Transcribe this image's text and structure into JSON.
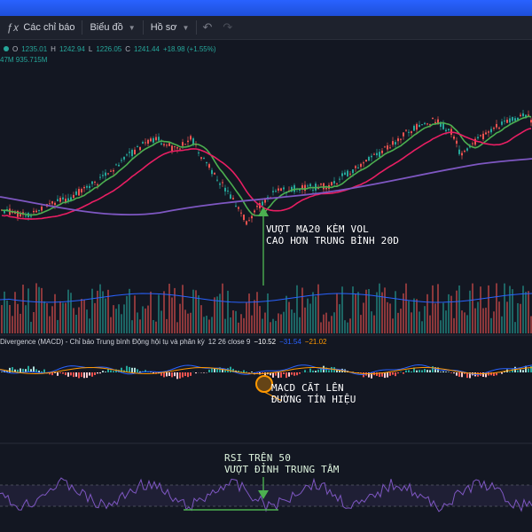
{
  "toolbar": {
    "indicators_label": "Các chỉ báo",
    "chart_label": "Biểu đồ",
    "profile_label": "Hồ sơ",
    "undo_icon": "undo-icon",
    "redo_icon": "redo-icon"
  },
  "ohlc": {
    "o_label": "O",
    "o_value": "1235.01",
    "h_label": "H",
    "h_value": "1242.94",
    "l_label": "L",
    "l_value": "1226.05",
    "c_label": "C",
    "c_value": "1241.44",
    "change": "+18.98 (+1.55%)"
  },
  "volume": {
    "label": "47M",
    "value": "935.715M"
  },
  "macd": {
    "title": "Divergence (MACD) - Chỉ báo Trung bình Động hội tụ và phân kỳ",
    "params": "12 26 close 9",
    "v1": "−10.52",
    "v2": "−31.54",
    "v3": "−21.02"
  },
  "annotations": {
    "ma_line1": "VƯỢT MA20 KÈM VOL",
    "ma_line2": "CAO HƠN TRUNG BÌNH 20D",
    "macd_line1": "MACD CẮT LÊN",
    "macd_line2": "ĐƯỜNG TÍN HIỆU",
    "rsi_line1": "RSI TRÊN 50",
    "rsi_line2": "VƯỢT ĐỈNH TRUNG TÂM"
  },
  "colors": {
    "background": "#131722",
    "up": "#26a69a",
    "down": "#ef5350",
    "ma_fast": "#4caf50",
    "ma_mid": "#e91e63",
    "ma_slow": "#7e57c2",
    "rsi": "#7e57c2",
    "highlight": "#ff9800"
  }
}
